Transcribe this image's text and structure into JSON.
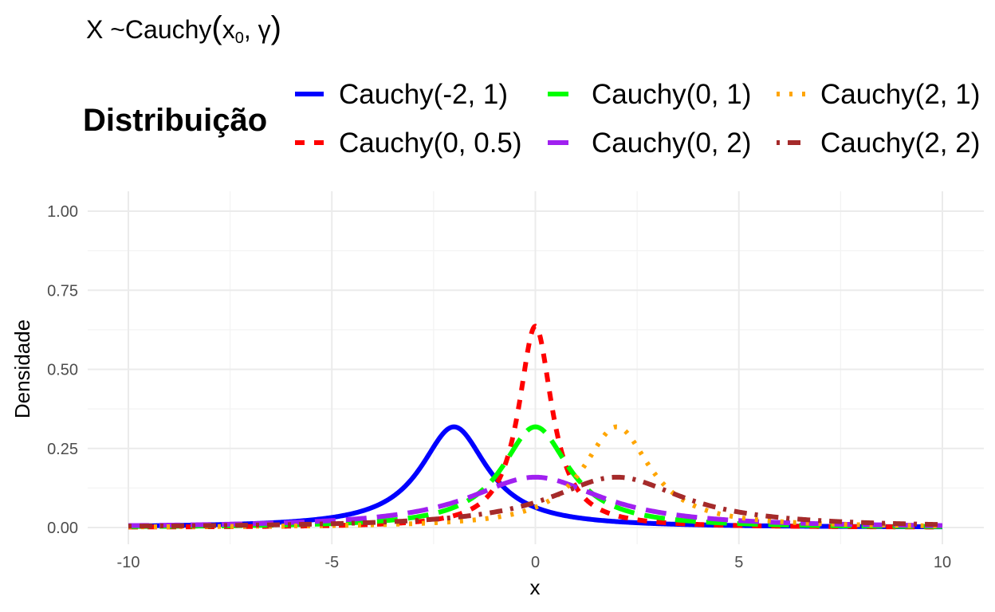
{
  "chart_data": {
    "type": "line",
    "title_parts": {
      "main": "X ~Cauchy",
      "open_paren": "(",
      "param1_base": "x",
      "param1_sub": "0",
      "separator": ", ",
      "param2": "γ",
      "close_paren": ")"
    },
    "legend_title": "Distribuição",
    "xlabel": "x",
    "ylabel": "Densidade",
    "xlim": [
      -10,
      10
    ],
    "ylim": [
      0,
      1
    ],
    "x_ticks": [
      {
        "value": -10,
        "label": "-10"
      },
      {
        "value": -5,
        "label": "-5"
      },
      {
        "value": 0,
        "label": "0"
      },
      {
        "value": 5,
        "label": "5"
      },
      {
        "value": 10,
        "label": "10"
      }
    ],
    "y_ticks": [
      {
        "value": 0,
        "label": "0.00"
      },
      {
        "value": 0.25,
        "label": "0.25"
      },
      {
        "value": 0.5,
        "label": "0.50"
      },
      {
        "value": 0.75,
        "label": "0.75"
      },
      {
        "value": 1,
        "label": "1.00"
      }
    ],
    "grid": true,
    "legend_position": "top",
    "series": [
      {
        "name": "Cauchy(-2, 1)",
        "location": -2,
        "scale": 1,
        "color": "#0000FF",
        "linetype": "solid"
      },
      {
        "name": "Cauchy(0, 0.5)",
        "location": 0,
        "scale": 0.5,
        "color": "#FF0000",
        "linetype": "dashed"
      },
      {
        "name": "Cauchy(0, 1)",
        "location": 0,
        "scale": 1,
        "color": "#00FF00",
        "linetype": "longdash"
      },
      {
        "name": "Cauchy(0, 2)",
        "location": 0,
        "scale": 2,
        "color": "#A020F0",
        "linetype": "longdash"
      },
      {
        "name": "Cauchy(2, 1)",
        "location": 2,
        "scale": 1,
        "color": "#FFA500",
        "linetype": "dotted"
      },
      {
        "name": "Cauchy(2, 2)",
        "location": 2,
        "scale": 2,
        "color": "#A52A2A",
        "linetype": "dotdash"
      }
    ]
  }
}
